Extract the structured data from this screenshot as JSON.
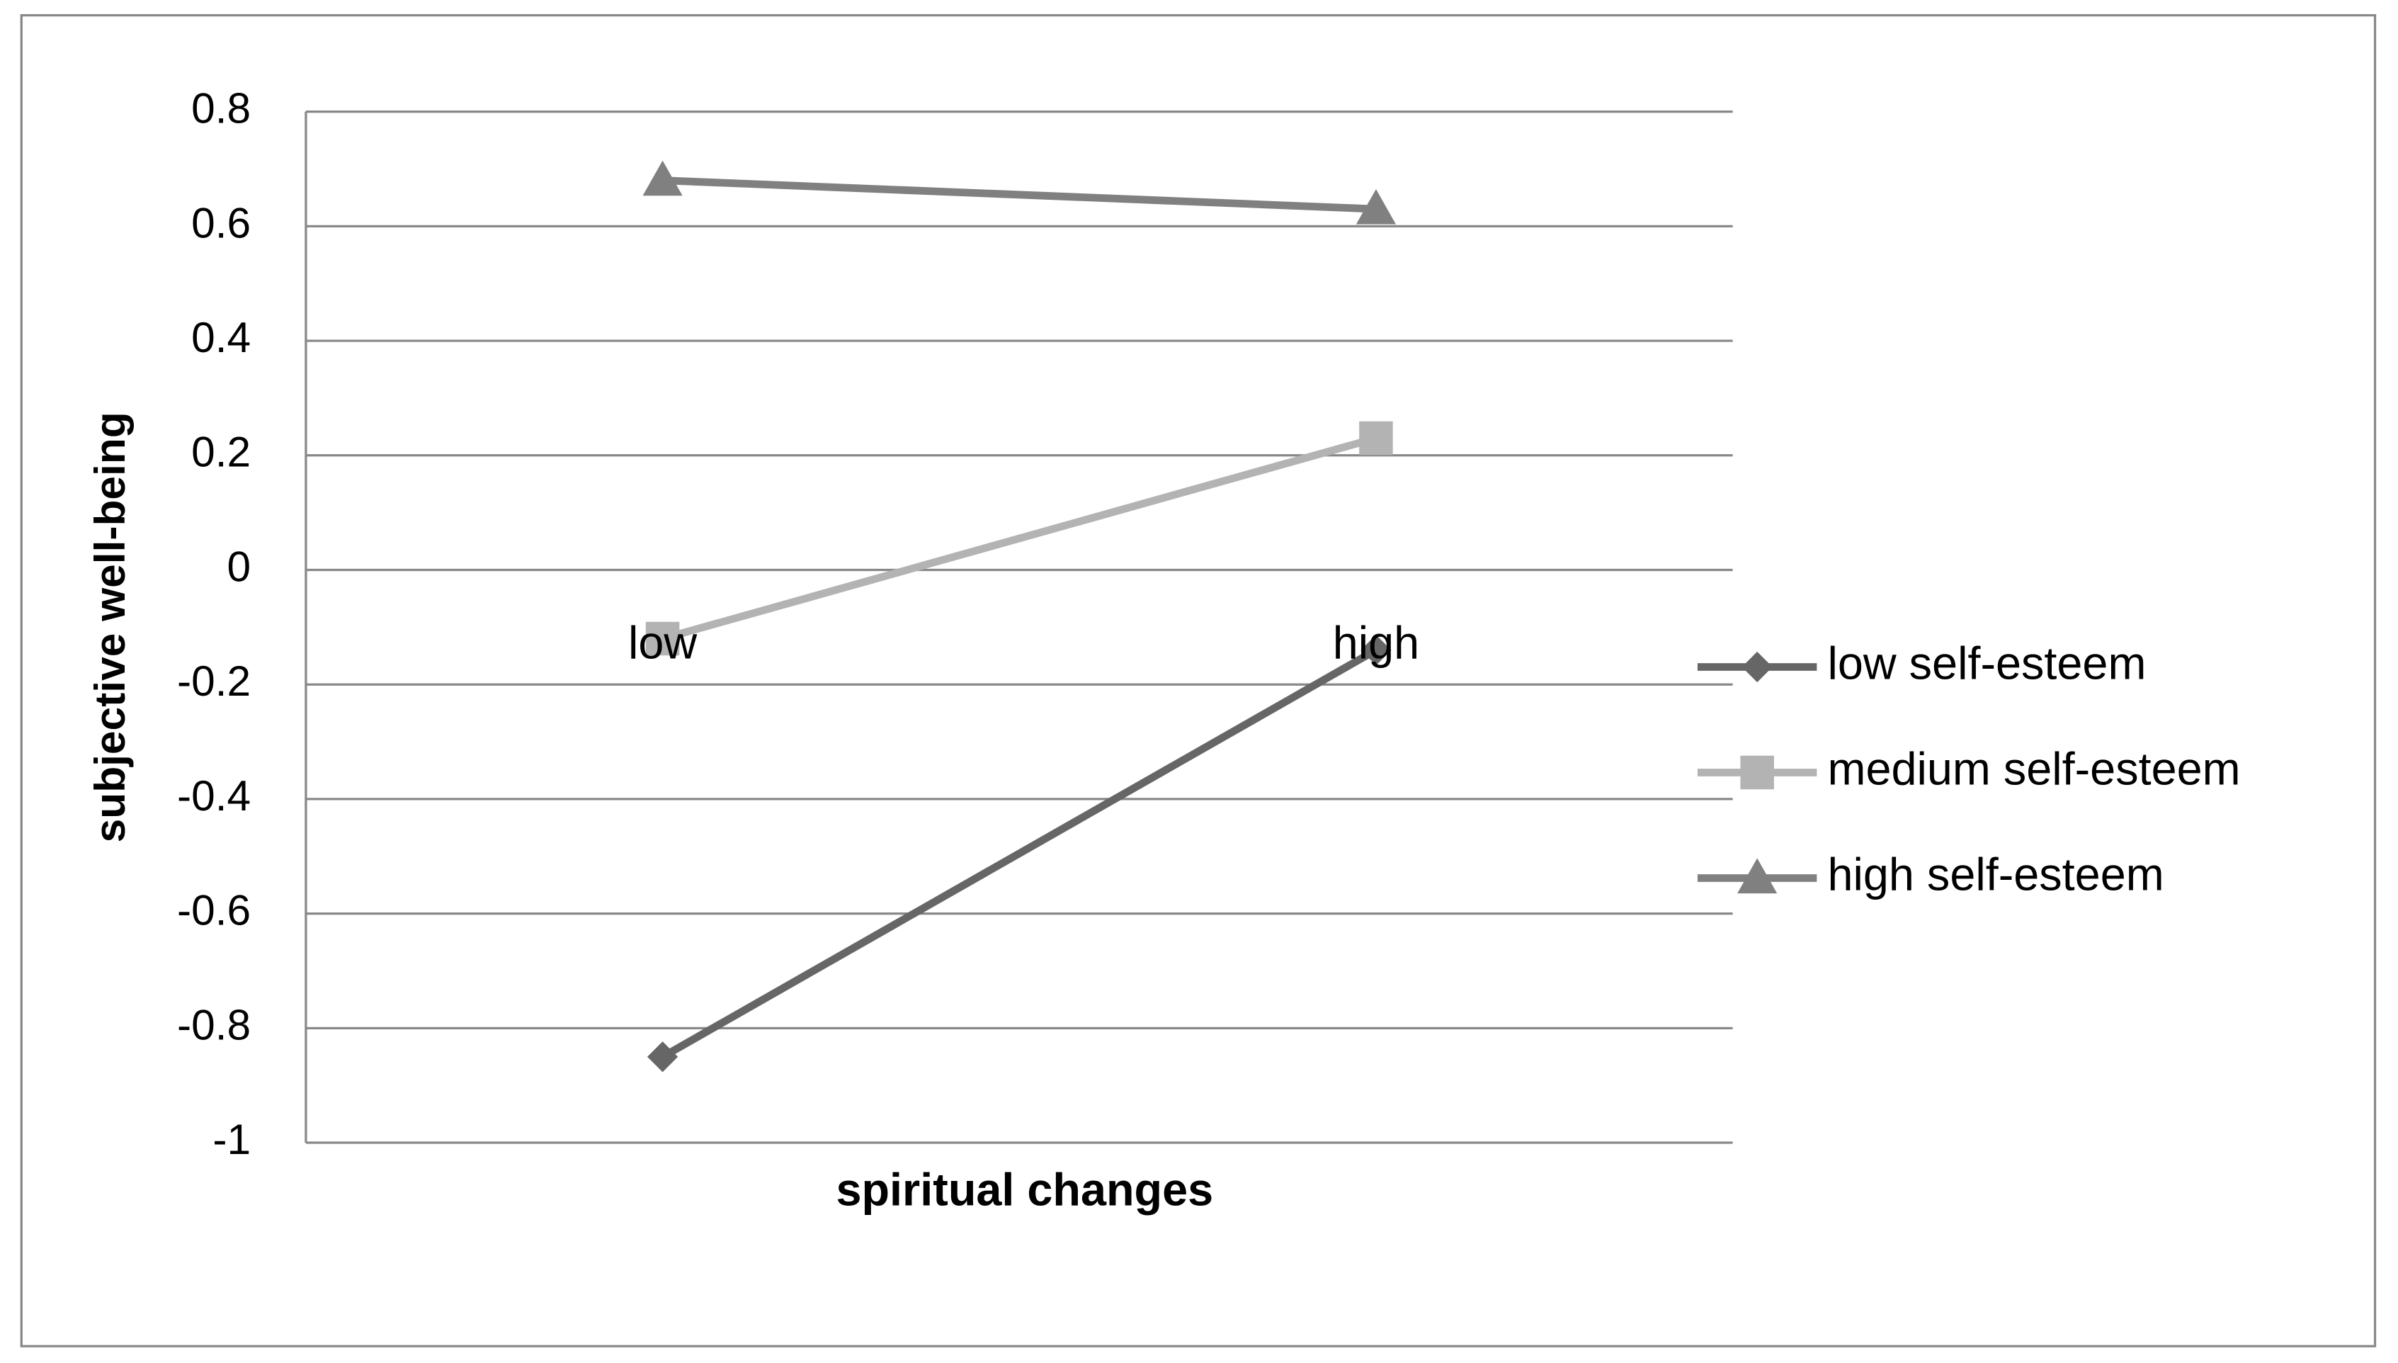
{
  "chart_data": {
    "type": "line",
    "x_label": "spiritual changes",
    "y_label": "subjective well-being",
    "categories": [
      "low",
      "high"
    ],
    "series": [
      {
        "name": "low self-esteem",
        "color": "#666666",
        "marker": "diamond",
        "values": [
          -0.85,
          -0.14
        ]
      },
      {
        "name": "medium self-esteem",
        "color": "#b3b3b3",
        "marker": "square",
        "values": [
          -0.12,
          0.23
        ]
      },
      {
        "name": "high self-esteem",
        "color": "#808080",
        "marker": "triangle",
        "values": [
          0.68,
          0.63
        ]
      }
    ],
    "ylim": [
      -1,
      0.8
    ],
    "yticks": [
      0.8,
      0.6,
      0.4,
      0.2,
      0,
      -0.2,
      -0.4,
      -0.6,
      -0.8,
      -1
    ],
    "grid": true,
    "legend": "right"
  }
}
